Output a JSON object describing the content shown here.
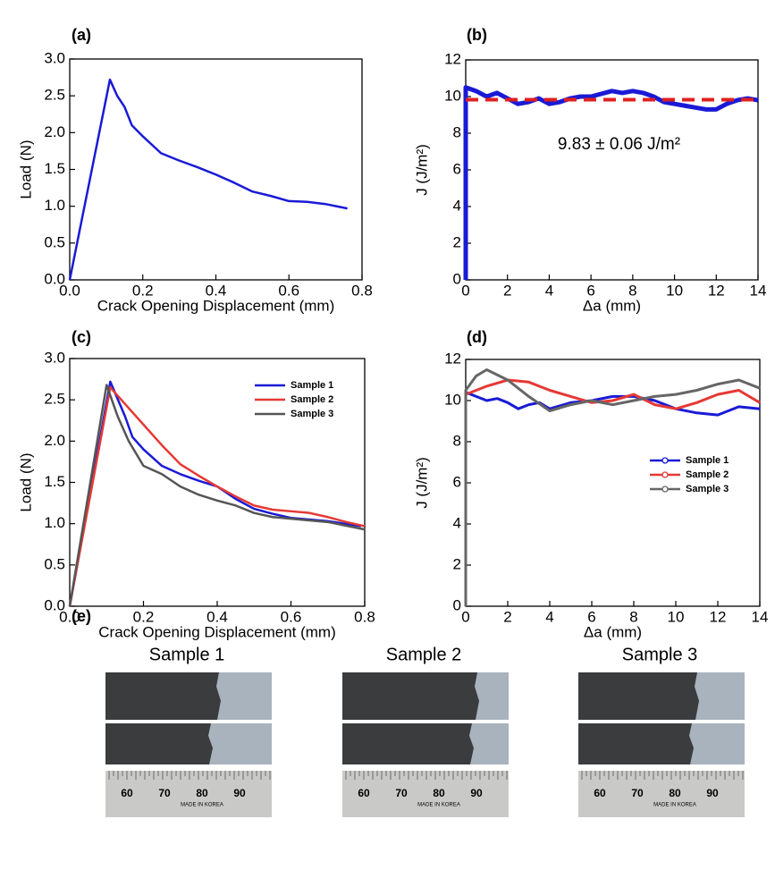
{
  "chart_data": [
    {
      "type": "line",
      "label": "(a)",
      "xlabel": "Crack Opening Displacement (mm)",
      "ylabel": "Load (N)",
      "xlim": [
        0,
        0.8
      ],
      "ylim": [
        0,
        3
      ],
      "xticks": [
        {
          "value": 0,
          "label": "0.0"
        },
        {
          "value": 0.2,
          "label": "0.2"
        },
        {
          "value": 0.4,
          "label": "0.4"
        },
        {
          "value": 0.6,
          "label": "0.6"
        },
        {
          "value": 0.8,
          "label": "0.8"
        }
      ],
      "yticks": [
        {
          "value": 0,
          "label": "0.0"
        },
        {
          "value": 0.5,
          "label": "0.5"
        },
        {
          "value": 1,
          "label": "1.0"
        },
        {
          "value": 1.5,
          "label": "1.5"
        },
        {
          "value": 2,
          "label": "2.0"
        },
        {
          "value": 2.5,
          "label": "2.5"
        },
        {
          "value": 3,
          "label": "3.0"
        }
      ],
      "series": [
        {
          "color": "#1a1ad6",
          "x": [
            0,
            0.11,
            0.13,
            0.15,
            0.17,
            0.2,
            0.25,
            0.3,
            0.35,
            0.4,
            0.45,
            0.5,
            0.55,
            0.6,
            0.65,
            0.7,
            0.76
          ],
          "values": [
            0,
            2.72,
            2.5,
            2.35,
            2.1,
            1.95,
            1.72,
            1.62,
            1.53,
            1.43,
            1.32,
            1.2,
            1.14,
            1.07,
            1.06,
            1.03,
            0.97
          ]
        }
      ]
    },
    {
      "type": "line",
      "label": "(b)",
      "xlabel": "Δa (mm)",
      "ylabel": "J (J/m²)",
      "xlim": [
        0,
        14
      ],
      "ylim": [
        0,
        12
      ],
      "xticks": [
        0,
        2,
        4,
        6,
        8,
        10,
        12,
        14
      ],
      "yticks": [
        0,
        2,
        4,
        6,
        8,
        10,
        12
      ],
      "annotations": [
        "9.83 ± 0.06 J/m²"
      ],
      "series": [
        {
          "color": "#1a1ad6",
          "width": 5,
          "x": [
            0,
            0,
            0.5,
            1,
            1.5,
            2,
            2.5,
            3,
            3.5,
            4,
            4.5,
            5,
            5.5,
            6,
            7,
            7.5,
            8,
            8.5,
            9,
            9.5,
            10,
            10.5,
            11,
            11.5,
            12,
            12.5,
            13,
            13.5,
            14
          ],
          "values": [
            0,
            10.5,
            10.3,
            10.0,
            10.2,
            9.9,
            9.6,
            9.7,
            9.9,
            9.6,
            9.7,
            9.9,
            10.0,
            10.0,
            10.3,
            10.2,
            10.3,
            10.2,
            10.0,
            9.7,
            9.6,
            9.5,
            9.4,
            9.3,
            9.3,
            9.6,
            9.8,
            9.9,
            9.8
          ]
        },
        {
          "color": "#e02020",
          "width": 4,
          "dash": true,
          "x": [
            0,
            14
          ],
          "values": [
            9.83,
            9.83
          ]
        }
      ]
    },
    {
      "type": "line",
      "label": "(c)",
      "xlabel": "Crack Opening Displacement (mm)",
      "ylabel": "Load (N)",
      "xlim": [
        0,
        0.8
      ],
      "ylim": [
        0,
        3
      ],
      "legend": "upper right",
      "xticks": [
        {
          "value": 0,
          "label": "0.0"
        },
        {
          "value": 0.2,
          "label": "0.2"
        },
        {
          "value": 0.4,
          "label": "0.4"
        },
        {
          "value": 0.6,
          "label": "0.6"
        },
        {
          "value": 0.8,
          "label": "0.8"
        }
      ],
      "yticks": [
        {
          "value": 0,
          "label": "0.0"
        },
        {
          "value": 0.5,
          "label": "0.5"
        },
        {
          "value": 1,
          "label": "1.0"
        },
        {
          "value": 1.5,
          "label": "1.5"
        },
        {
          "value": 2,
          "label": "2.0"
        },
        {
          "value": 2.5,
          "label": "2.5"
        },
        {
          "value": 3,
          "label": "3.0"
        }
      ],
      "series": [
        {
          "name": "Sample 1",
          "color": "#1a1ad6",
          "x": [
            0,
            0.11,
            0.15,
            0.17,
            0.2,
            0.25,
            0.3,
            0.35,
            0.4,
            0.45,
            0.5,
            0.55,
            0.6,
            0.7,
            0.79
          ],
          "values": [
            0,
            2.72,
            2.3,
            2.05,
            1.9,
            1.7,
            1.6,
            1.52,
            1.45,
            1.3,
            1.18,
            1.12,
            1.07,
            1.03,
            0.97
          ]
        },
        {
          "name": "Sample 2",
          "color": "#e53935",
          "x": [
            0,
            0.11,
            0.15,
            0.2,
            0.25,
            0.3,
            0.35,
            0.4,
            0.45,
            0.5,
            0.55,
            0.6,
            0.65,
            0.7,
            0.75,
            0.8
          ],
          "values": [
            0,
            2.65,
            2.45,
            2.2,
            1.95,
            1.72,
            1.58,
            1.45,
            1.33,
            1.22,
            1.17,
            1.15,
            1.13,
            1.08,
            1.02,
            0.97
          ]
        },
        {
          "name": "Sample 3",
          "color": "#555555",
          "x": [
            0,
            0.1,
            0.13,
            0.16,
            0.2,
            0.25,
            0.3,
            0.35,
            0.4,
            0.45,
            0.5,
            0.55,
            0.6,
            0.7,
            0.8
          ],
          "values": [
            0,
            2.68,
            2.3,
            2.0,
            1.7,
            1.6,
            1.45,
            1.35,
            1.28,
            1.22,
            1.13,
            1.08,
            1.06,
            1.02,
            0.93
          ]
        }
      ]
    },
    {
      "type": "line",
      "label": "(d)",
      "xlabel": "Δa (mm)",
      "ylabel": "J (J/m²)",
      "xlim": [
        0,
        14
      ],
      "ylim": [
        0,
        12
      ],
      "legend": "center right",
      "markers": true,
      "xticks": [
        0,
        2,
        4,
        6,
        8,
        10,
        12,
        14
      ],
      "yticks": [
        0,
        2,
        4,
        6,
        8,
        10,
        12
      ],
      "series": [
        {
          "name": "Sample 1",
          "color": "#1a1ad6",
          "x": [
            0,
            0,
            0.5,
            1,
            1.5,
            2,
            2.5,
            3,
            3.5,
            4,
            5,
            6,
            7,
            8,
            9,
            10,
            11,
            12,
            13,
            14
          ],
          "values": [
            0,
            10.4,
            10.2,
            10.0,
            10.1,
            9.9,
            9.6,
            9.8,
            9.9,
            9.6,
            9.9,
            10.0,
            10.2,
            10.2,
            10.0,
            9.6,
            9.4,
            9.3,
            9.7,
            9.6
          ]
        },
        {
          "name": "Sample 2",
          "color": "#e53935",
          "x": [
            0,
            0,
            1,
            2,
            3,
            4,
            5,
            6,
            7,
            8,
            9,
            10,
            11,
            12,
            13,
            14
          ],
          "values": [
            0,
            10.3,
            10.7,
            11.0,
            10.9,
            10.5,
            10.2,
            9.9,
            10.0,
            10.3,
            9.8,
            9.6,
            9.9,
            10.3,
            10.5,
            9.9
          ]
        },
        {
          "name": "Sample 3",
          "color": "#666666",
          "x": [
            0,
            0,
            0.5,
            1,
            2,
            3,
            4,
            5,
            6,
            7,
            8,
            9,
            10,
            11,
            12,
            13,
            14
          ],
          "values": [
            0,
            10.5,
            11.2,
            11.5,
            11.0,
            10.2,
            9.5,
            9.8,
            10.0,
            9.8,
            10.0,
            10.2,
            10.3,
            10.5,
            10.8,
            11.0,
            10.6
          ]
        }
      ]
    }
  ],
  "photos": {
    "label": "(e)",
    "samples": [
      {
        "name": "Sample 1",
        "color": "#1a1ad6"
      },
      {
        "name": "Sample 2",
        "color": "#e53935"
      },
      {
        "name": "Sample 3",
        "color": "#222222"
      }
    ],
    "ruler_labels": [
      "60",
      "70",
      "80",
      "90"
    ],
    "ruler_text": "MADE IN KOREA"
  }
}
